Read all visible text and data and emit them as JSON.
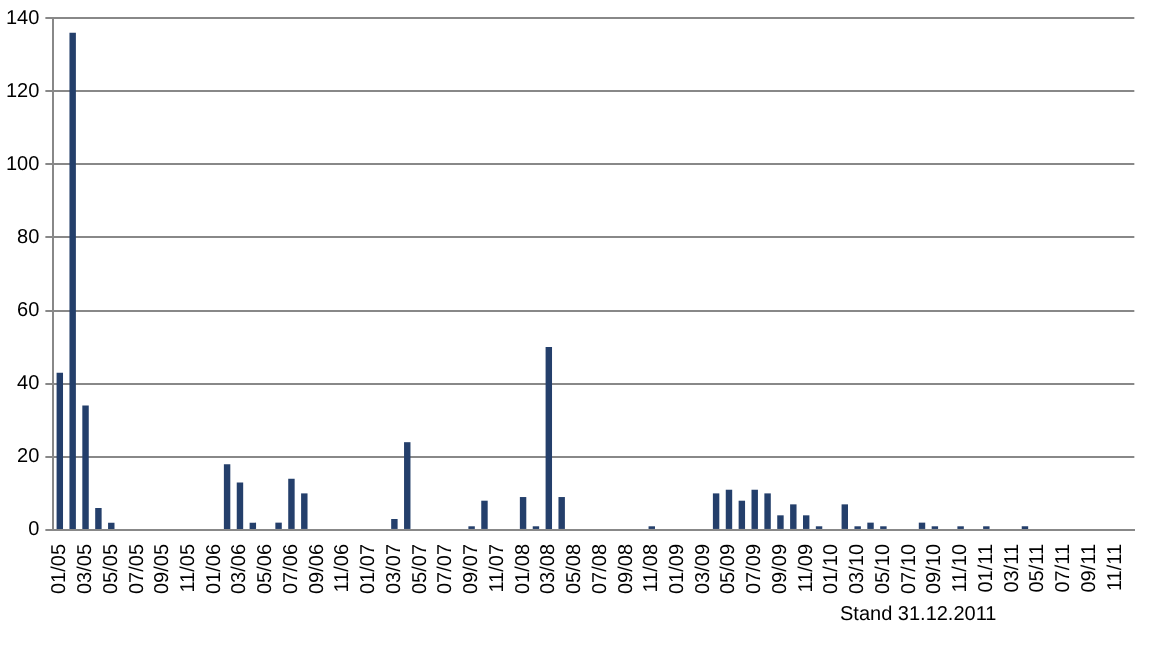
{
  "chart_data": {
    "type": "bar",
    "categories": [
      "01/05",
      null,
      "03/05",
      null,
      "05/05",
      null,
      "07/05",
      null,
      "09/05",
      null,
      "11/05",
      null,
      "01/06",
      null,
      "03/06",
      null,
      "05/06",
      null,
      "07/06",
      null,
      "09/06",
      null,
      "11/06",
      null,
      "01/07",
      null,
      "03/07",
      null,
      "05/07",
      null,
      "07/07",
      null,
      "09/07",
      null,
      "11/07",
      null,
      "01/08",
      null,
      "03/08",
      null,
      "05/08",
      null,
      "07/08",
      null,
      "09/08",
      null,
      "11/08",
      null,
      "01/09",
      null,
      "03/09",
      null,
      "05/09",
      null,
      "07/09",
      null,
      "09/09",
      null,
      "11/09",
      null,
      "01/10",
      null,
      "03/10",
      null,
      "05/10",
      null,
      "07/10",
      null,
      "09/10",
      null,
      "11/10",
      null,
      "01/11",
      null,
      "03/11",
      null,
      "05/11",
      null,
      "07/11",
      null,
      "09/11",
      null,
      "11/11",
      null
    ],
    "values": [
      43,
      136,
      34,
      6,
      2,
      0,
      0,
      0,
      0,
      0,
      0,
      0,
      0,
      18,
      13,
      2,
      0,
      2,
      14,
      10,
      0,
      0,
      0,
      0,
      0,
      0,
      3,
      24,
      0,
      0,
      0,
      0,
      1,
      8,
      0,
      0,
      9,
      1,
      50,
      9,
      0,
      0,
      0,
      0,
      0,
      0,
      1,
      0,
      0,
      0,
      0,
      10,
      11,
      8,
      11,
      10,
      4,
      7,
      4,
      1,
      0,
      7,
      1,
      2,
      1,
      0,
      0,
      2,
      1,
      0,
      1,
      0,
      1,
      0,
      0,
      1,
      0,
      0,
      0,
      0,
      0,
      0,
      0,
      0
    ],
    "color": "#243f6b",
    "ylim": [
      0,
      140
    ],
    "yticks": [
      0,
      20,
      40,
      60,
      80,
      100,
      120,
      140
    ],
    "grid": "y",
    "legend": false,
    "annotations": [
      "Stand 31.12.2011"
    ]
  }
}
